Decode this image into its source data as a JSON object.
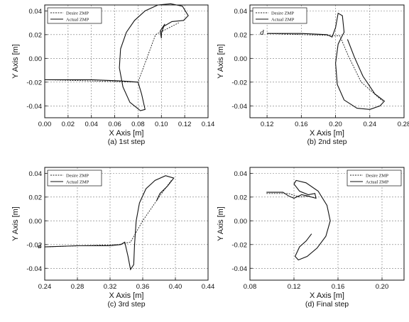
{
  "chart_data": [
    {
      "type": "line",
      "caption": "(a) 1st step",
      "xlabel": "X Axis [m]",
      "ylabel": "Y Axis [m]",
      "xlim": [
        0.0,
        0.14
      ],
      "ylim": [
        -0.05,
        0.045
      ],
      "xticks": [
        "0.00",
        "0.02",
        "0.04",
        "0.06",
        "0.08",
        "0.10",
        "0.12",
        "0.14"
      ],
      "yticks": [
        "-0.04",
        "-0.02",
        "0.00",
        "0.02",
        "0.04"
      ],
      "grid": true,
      "legend": "top-left",
      "series": [
        {
          "name": "Desire ZMP",
          "style": "dotted",
          "points": [
            [
              0.0,
              -0.018
            ],
            [
              0.08,
              -0.02
            ],
            [
              0.095,
              0.02
            ],
            [
              0.115,
              0.03
            ]
          ]
        },
        {
          "name": "Actual ZMP",
          "style": "solid",
          "points": [
            [
              0.0,
              -0.018
            ],
            [
              0.04,
              -0.018
            ],
            [
              0.065,
              -0.019
            ],
            [
              0.08,
              -0.02
            ],
            [
              0.083,
              -0.03
            ],
            [
              0.086,
              -0.043
            ],
            [
              0.082,
              -0.044
            ],
            [
              0.073,
              -0.037
            ],
            [
              0.067,
              -0.024
            ],
            [
              0.064,
              -0.008
            ],
            [
              0.065,
              0.008
            ],
            [
              0.07,
              0.022
            ],
            [
              0.077,
              0.032
            ],
            [
              0.086,
              0.04
            ],
            [
              0.097,
              0.045
            ],
            [
              0.108,
              0.046
            ],
            [
              0.118,
              0.044
            ],
            [
              0.123,
              0.036
            ],
            [
              0.119,
              0.032
            ],
            [
              0.109,
              0.031
            ],
            [
              0.102,
              0.027
            ],
            [
              0.1,
              0.021
            ],
            [
              0.1,
              0.017
            ],
            [
              0.099,
              0.023
            ],
            [
              0.103,
              0.029
            ]
          ]
        }
      ]
    },
    {
      "type": "line",
      "caption": "(b) 2nd step",
      "xlabel": "X Axis [m]",
      "ylabel": "Y Axis [m]",
      "xlim": [
        0.1,
        0.28
      ],
      "ylim": [
        -0.05,
        0.045
      ],
      "xticks": [
        "0.12",
        "0.16",
        "0.20",
        "0.24",
        "0.28"
      ],
      "yticks": [
        "-0.04",
        "-0.02",
        "0.00",
        "0.02",
        "0.04"
      ],
      "grid": true,
      "legend": "top-left",
      "annotation": "d",
      "series": [
        {
          "name": "Desire ZMP",
          "style": "dotted",
          "points": [
            [
              0.12,
              0.021
            ],
            [
              0.205,
              0.019
            ],
            [
              0.215,
              0.002
            ],
            [
              0.23,
              -0.02
            ],
            [
              0.255,
              -0.036
            ]
          ]
        },
        {
          "name": "Actual ZMP",
          "style": "solid",
          "points": [
            [
              0.12,
              0.021
            ],
            [
              0.16,
              0.021
            ],
            [
              0.19,
              0.02
            ],
            [
              0.196,
              0.018
            ],
            [
              0.2,
              0.026
            ],
            [
              0.203,
              0.038
            ],
            [
              0.208,
              0.036
            ],
            [
              0.21,
              0.022
            ],
            [
              0.207,
              0.018
            ],
            [
              0.203,
              0.012
            ],
            [
              0.2,
              -0.004
            ],
            [
              0.202,
              -0.022
            ],
            [
              0.21,
              -0.035
            ],
            [
              0.225,
              -0.042
            ],
            [
              0.24,
              -0.043
            ],
            [
              0.252,
              -0.04
            ],
            [
              0.257,
              -0.036
            ],
            [
              0.246,
              -0.03
            ],
            [
              0.232,
              -0.015
            ],
            [
              0.222,
              0.001
            ],
            [
              0.214,
              0.016
            ]
          ]
        }
      ]
    },
    {
      "type": "line",
      "caption": "(c) 3rd step",
      "xlabel": "X Axis [m]",
      "ylabel": "Y Axis [m]",
      "xlim": [
        0.24,
        0.44
      ],
      "ylim": [
        -0.05,
        0.045
      ],
      "xticks": [
        "0.24",
        "0.28",
        "0.32",
        "0.36",
        "0.40",
        "0.44"
      ],
      "yticks": [
        "-0.04",
        "-0.02",
        "0.00",
        "0.02",
        "0.04"
      ],
      "grid": true,
      "legend": "top-left",
      "annotation": "d",
      "series": [
        {
          "name": "Desire ZMP",
          "style": "dotted",
          "points": [
            [
              0.24,
              -0.022
            ],
            [
              0.33,
              -0.02
            ],
            [
              0.345,
              -0.018
            ],
            [
              0.36,
              0.0
            ],
            [
              0.38,
              0.02
            ],
            [
              0.395,
              0.034
            ]
          ]
        },
        {
          "name": "Actual ZMP",
          "style": "solid",
          "points": [
            [
              0.24,
              -0.022
            ],
            [
              0.28,
              -0.021
            ],
            [
              0.32,
              -0.021
            ],
            [
              0.333,
              -0.02
            ],
            [
              0.338,
              -0.018
            ],
            [
              0.342,
              -0.03
            ],
            [
              0.345,
              -0.041
            ],
            [
              0.349,
              -0.037
            ],
            [
              0.35,
              -0.02
            ],
            [
              0.352,
              0.0
            ],
            [
              0.356,
              0.015
            ],
            [
              0.364,
              0.027
            ],
            [
              0.375,
              0.034
            ],
            [
              0.388,
              0.038
            ],
            [
              0.398,
              0.036
            ],
            [
              0.39,
              0.029
            ],
            [
              0.381,
              0.023
            ],
            [
              0.377,
              0.017
            ]
          ]
        }
      ]
    },
    {
      "type": "line",
      "caption": "(d) Final step",
      "xlabel": "X Axis [m]",
      "ylabel": "Y Axis [m]",
      "xlim": [
        0.08,
        0.22
      ],
      "ylim": [
        -0.05,
        0.045
      ],
      "xticks": [
        "0.08",
        "0.12",
        "0.16",
        "0.20"
      ],
      "yticks": [
        "-0.04",
        "-0.02",
        "0.00",
        "0.02",
        "0.04"
      ],
      "grid": true,
      "legend": "top-right",
      "series": [
        {
          "name": "Desire ZMP",
          "style": "dotted",
          "points": [
            [
              0.095,
              0.023
            ],
            [
              0.115,
              0.023
            ],
            [
              0.125,
              0.02
            ],
            [
              0.135,
              0.021
            ]
          ]
        },
        {
          "name": "Actual ZMP",
          "style": "solid",
          "points": [
            [
              0.095,
              0.024
            ],
            [
              0.11,
              0.024
            ],
            [
              0.115,
              0.021
            ],
            [
              0.12,
              0.019
            ],
            [
              0.127,
              0.022
            ],
            [
              0.132,
              0.021
            ],
            [
              0.14,
              0.019
            ],
            [
              0.139,
              0.023
            ],
            [
              0.133,
              0.022
            ],
            [
              0.125,
              0.025
            ],
            [
              0.12,
              0.031
            ],
            [
              0.122,
              0.034
            ],
            [
              0.131,
              0.032
            ],
            [
              0.142,
              0.025
            ],
            [
              0.15,
              0.013
            ],
            [
              0.153,
              0.0
            ],
            [
              0.149,
              -0.013
            ],
            [
              0.141,
              -0.023
            ],
            [
              0.132,
              -0.03
            ],
            [
              0.124,
              -0.033
            ],
            [
              0.121,
              -0.03
            ],
            [
              0.125,
              -0.022
            ],
            [
              0.131,
              -0.017
            ],
            [
              0.136,
              -0.011
            ]
          ]
        }
      ]
    }
  ]
}
